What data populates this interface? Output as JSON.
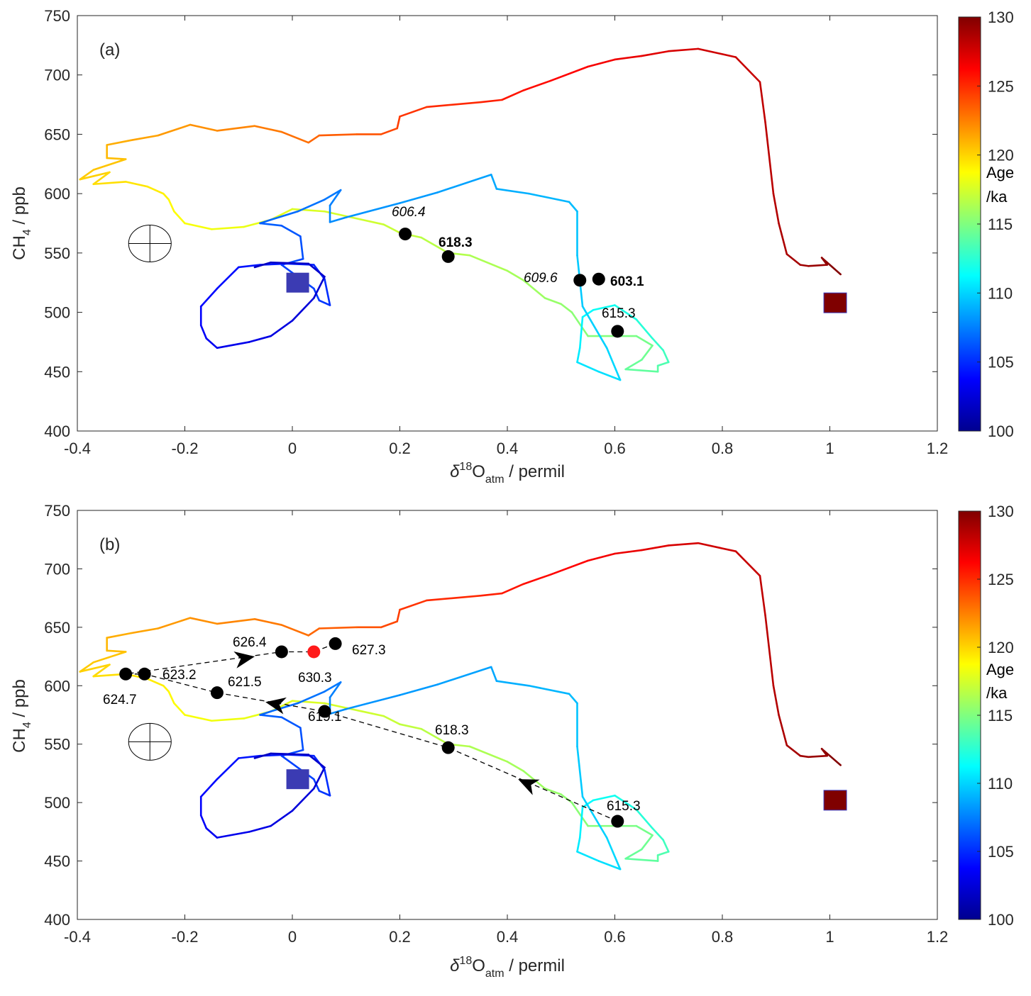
{
  "chart_data": [
    {
      "type": "line",
      "panel_label": "(a)",
      "xlabel_delta": "δ",
      "xlabel_sup": "18",
      "xlabel_main": "O",
      "xlabel_sub": "atm",
      "xlabel_tail": " / permil",
      "ylabel_main": "CH",
      "ylabel_sub": "4",
      "ylabel_tail": " / ppb",
      "xlim": [
        -0.4,
        1.2
      ],
      "ylim": [
        400,
        750
      ],
      "xticks": [
        -0.4,
        -0.2,
        0,
        0.2,
        0.4,
        0.6,
        0.8,
        1,
        1.2
      ],
      "xtick_labels": [
        "-0.4",
        "-0.2",
        "0",
        "0.2",
        "0.4",
        "0.6",
        "0.8",
        "1",
        "1.2"
      ],
      "yticks": [
        400,
        450,
        500,
        550,
        600,
        650,
        700,
        750
      ],
      "ytick_labels": [
        "400",
        "450",
        "500",
        "550",
        "600",
        "650",
        "700",
        "750"
      ],
      "colorbar": {
        "label_line1": "Age",
        "label_line2": "/ka",
        "min": 100,
        "max": 130,
        "ticks": [
          "100",
          "105",
          "110",
          "115",
          "120",
          "125",
          "130"
        ]
      },
      "trajectory_color_by": "age_ka",
      "trajectory": [
        [
          1.02,
          532,
          130
        ],
        [
          1.0,
          540,
          129.8
        ],
        [
          0.985,
          546,
          129.6
        ],
        [
          0.995,
          540,
          129.4
        ],
        [
          0.96,
          539,
          129.2
        ],
        [
          0.945,
          540,
          129.0
        ],
        [
          0.92,
          549,
          128.8
        ],
        [
          0.905,
          575,
          128.6
        ],
        [
          0.895,
          600,
          128.4
        ],
        [
          0.88,
          660,
          128.2
        ],
        [
          0.87,
          694,
          128.0
        ],
        [
          0.825,
          715,
          127.8
        ],
        [
          0.755,
          722,
          127.6
        ],
        [
          0.7,
          720,
          127.3
        ],
        [
          0.65,
          716,
          127.0
        ],
        [
          0.6,
          713,
          126.7
        ],
        [
          0.55,
          707,
          126.4
        ],
        [
          0.48,
          695,
          126.1
        ],
        [
          0.43,
          687,
          125.8
        ],
        [
          0.39,
          679,
          125.5
        ],
        [
          0.35,
          677,
          125.2
        ],
        [
          0.25,
          673,
          124.9
        ],
        [
          0.2,
          665,
          124.6
        ],
        [
          0.195,
          655,
          124.3
        ],
        [
          0.165,
          650,
          124.0
        ],
        [
          0.12,
          650,
          123.7
        ],
        [
          0.05,
          649,
          123.4
        ],
        [
          0.03,
          643,
          123.1
        ],
        [
          -0.02,
          652,
          122.8
        ],
        [
          -0.07,
          657,
          122.5
        ],
        [
          -0.14,
          653,
          122.2
        ],
        [
          -0.19,
          658,
          121.9
        ],
        [
          -0.25,
          649,
          121.6
        ],
        [
          -0.3,
          645,
          121.3
        ],
        [
          -0.345,
          641,
          121.0
        ],
        [
          -0.345,
          630,
          120.8
        ],
        [
          -0.31,
          629,
          120.6
        ],
        [
          -0.37,
          620,
          120.4
        ],
        [
          -0.395,
          612,
          120.2
        ],
        [
          -0.34,
          618,
          120.0
        ],
        [
          -0.37,
          608,
          119.8
        ],
        [
          -0.31,
          610,
          119.6
        ],
        [
          -0.27,
          606,
          119.4
        ],
        [
          -0.24,
          600,
          119.2
        ],
        [
          -0.23,
          595,
          119.0
        ],
        [
          -0.22,
          585,
          118.8
        ],
        [
          -0.2,
          575,
          118.6
        ],
        [
          -0.15,
          570,
          118.4
        ],
        [
          -0.09,
          572,
          118.2
        ],
        [
          -0.04,
          578,
          118.0
        ],
        [
          0.0,
          587,
          117.8
        ],
        [
          0.06,
          585,
          117.6
        ],
        [
          0.11,
          580,
          117.4
        ],
        [
          0.17,
          574,
          117.2
        ],
        [
          0.2,
          567,
          117.0
        ],
        [
          0.24,
          563,
          116.8
        ],
        [
          0.29,
          550,
          116.6
        ],
        [
          0.33,
          548,
          116.4
        ],
        [
          0.4,
          535,
          116.2
        ],
        [
          0.43,
          527,
          116.0
        ],
        [
          0.47,
          512,
          115.8
        ],
        [
          0.5,
          507,
          115.6
        ],
        [
          0.52,
          500,
          115.4
        ],
        [
          0.55,
          480,
          115.2
        ],
        [
          0.6,
          480,
          115.0
        ],
        [
          0.64,
          480,
          114.8
        ],
        [
          0.67,
          472,
          114.6
        ],
        [
          0.65,
          460,
          114.4
        ],
        [
          0.62,
          452,
          114.2
        ],
        [
          0.68,
          450,
          114.0
        ],
        [
          0.68,
          455,
          113.8
        ],
        [
          0.7,
          458,
          113.4
        ],
        [
          0.69,
          468,
          113.0
        ],
        [
          0.67,
          478,
          112.6
        ],
        [
          0.64,
          494,
          112.2
        ],
        [
          0.6,
          506,
          111.8
        ],
        [
          0.56,
          502,
          111.4
        ],
        [
          0.54,
          496,
          111.0
        ],
        [
          0.535,
          470,
          110.8
        ],
        [
          0.53,
          458,
          110.6
        ],
        [
          0.57,
          450,
          110.4
        ],
        [
          0.61,
          443,
          110.2
        ],
        [
          0.585,
          470,
          110.0
        ],
        [
          0.54,
          505,
          109.8
        ],
        [
          0.53,
          548,
          109.6
        ],
        [
          0.53,
          585,
          109.4
        ],
        [
          0.515,
          593,
          109.2
        ],
        [
          0.44,
          600,
          109.0
        ],
        [
          0.38,
          604,
          108.8
        ],
        [
          0.37,
          616,
          108.6
        ],
        [
          0.27,
          601,
          108.4
        ],
        [
          0.2,
          592,
          108.2
        ],
        [
          0.1,
          580,
          108.0
        ],
        [
          0.07,
          576,
          107.8
        ],
        [
          0.07,
          590,
          107.6
        ],
        [
          0.09,
          603,
          107.4
        ],
        [
          0.06,
          595,
          107.2
        ],
        [
          0.01,
          585,
          107.0
        ],
        [
          -0.04,
          578,
          106.8
        ],
        [
          -0.06,
          575,
          106.6
        ],
        [
          -0.02,
          573,
          106.4
        ],
        [
          0.015,
          564,
          106.2
        ],
        [
          0.02,
          545,
          106.0
        ],
        [
          -0.02,
          540,
          105.8
        ],
        [
          0.04,
          520,
          105.6
        ],
        [
          0.05,
          510,
          105.4
        ],
        [
          0.07,
          506,
          105.2
        ],
        [
          0.06,
          528,
          105.0
        ],
        [
          0.04,
          540,
          104.8
        ],
        [
          -0.01,
          541,
          104.6
        ],
        [
          -0.06,
          540,
          104.4
        ],
        [
          -0.1,
          538,
          104.2
        ],
        [
          -0.14,
          520,
          104.0
        ],
        [
          -0.17,
          505,
          103.8
        ],
        [
          -0.17,
          489,
          103.6
        ],
        [
          -0.16,
          478,
          103.4
        ],
        [
          -0.14,
          470,
          103.2
        ],
        [
          -0.08,
          475,
          103.0
        ],
        [
          -0.04,
          480,
          102.8
        ],
        [
          0.0,
          493,
          102.6
        ],
        [
          0.04,
          512,
          102.4
        ],
        [
          0.06,
          530,
          102.2
        ],
        [
          0.03,
          541,
          102.0
        ],
        [
          -0.04,
          542,
          101.8
        ],
        [
          -0.07,
          538,
          101.6
        ]
      ],
      "start_marker": {
        "x": 1.01,
        "y": 508,
        "age_ka": 130,
        "color": "#7f0000"
      },
      "end_marker": {
        "x": 0.01,
        "y": 525,
        "age_ka": 100,
        "color": "#3b3bb3"
      },
      "error_ellipse": {
        "x": -0.265,
        "y": 558
      },
      "points": [
        {
          "x": 0.21,
          "y": 566,
          "label": "606.4",
          "style": "italic"
        },
        {
          "x": 0.29,
          "y": 547,
          "label": "618.3",
          "style": "bold"
        },
        {
          "x": 0.535,
          "y": 527,
          "label": "609.6",
          "style": "italic"
        },
        {
          "x": 0.57,
          "y": 528,
          "label": "603.1",
          "style": "bold"
        },
        {
          "x": 0.605,
          "y": 484,
          "label": "615.3",
          "style": "normal"
        }
      ]
    },
    {
      "type": "line",
      "panel_label": "(b)",
      "xlabel_delta": "δ",
      "xlabel_sup": "18",
      "xlabel_main": "O",
      "xlabel_sub": "atm",
      "xlabel_tail": " / permil",
      "ylabel_main": "CH",
      "ylabel_sub": "4",
      "ylabel_tail": " / ppb",
      "xlim": [
        -0.4,
        1.2
      ],
      "ylim": [
        400,
        750
      ],
      "xticks": [
        -0.4,
        -0.2,
        0,
        0.2,
        0.4,
        0.6,
        0.8,
        1,
        1.2
      ],
      "xtick_labels": [
        "-0.4",
        "-0.2",
        "0",
        "0.2",
        "0.4",
        "0.6",
        "0.8",
        "1",
        "1.2"
      ],
      "yticks": [
        400,
        450,
        500,
        550,
        600,
        650,
        700,
        750
      ],
      "ytick_labels": [
        "400",
        "450",
        "500",
        "550",
        "600",
        "650",
        "700",
        "750"
      ],
      "colorbar": {
        "label_line1": "Age",
        "label_line2": "/ka",
        "min": 100,
        "max": 130,
        "ticks": [
          "100",
          "105",
          "110",
          "115",
          "120",
          "125",
          "130"
        ]
      },
      "trajectory_color_by": "age_ka",
      "trajectory": "same as panel (a)",
      "start_marker": {
        "x": 1.01,
        "y": 502,
        "age_ka": 130,
        "color": "#7f0000"
      },
      "end_marker": {
        "x": 0.01,
        "y": 520,
        "age_ka": 100,
        "color": "#3b3bb3"
      },
      "error_ellipse": {
        "x": -0.265,
        "y": 552
      },
      "points": [
        {
          "x": 0.605,
          "y": 484,
          "label": "615.3",
          "color": "#000000"
        },
        {
          "x": 0.29,
          "y": 547,
          "label": "618.3",
          "color": "#000000"
        },
        {
          "x": 0.06,
          "y": 578,
          "label": "619.1",
          "color": "#000000"
        },
        {
          "x": -0.14,
          "y": 594,
          "label": "621.5",
          "color": "#000000"
        },
        {
          "x": -0.275,
          "y": 610,
          "label": "623.2",
          "color": "#000000"
        },
        {
          "x": -0.31,
          "y": 610,
          "label": "624.7",
          "color": "#000000"
        },
        {
          "x": -0.02,
          "y": 629,
          "label": "626.4",
          "color": "#000000"
        },
        {
          "x": 0.08,
          "y": 636,
          "label": "627.3",
          "color": "#000000"
        },
        {
          "x": 0.04,
          "y": 629,
          "label": "630.3",
          "color": "#ff1a1a"
        }
      ],
      "dashed_path": [
        [
          0.605,
          484
        ],
        [
          0.29,
          547
        ],
        [
          0.06,
          578
        ],
        [
          -0.14,
          594
        ],
        [
          -0.275,
          610
        ],
        [
          -0.31,
          610
        ],
        [
          -0.02,
          629
        ],
        [
          0.04,
          629
        ],
        [
          0.08,
          636
        ]
      ],
      "arrows": [
        {
          "x": 0.42,
          "y": 520,
          "toward": [
            0.29,
            547
          ]
        },
        {
          "x": -0.05,
          "y": 586,
          "toward": [
            -0.14,
            594
          ]
        },
        {
          "x": -0.07,
          "y": 625,
          "toward": [
            -0.02,
            629
          ]
        }
      ]
    }
  ]
}
